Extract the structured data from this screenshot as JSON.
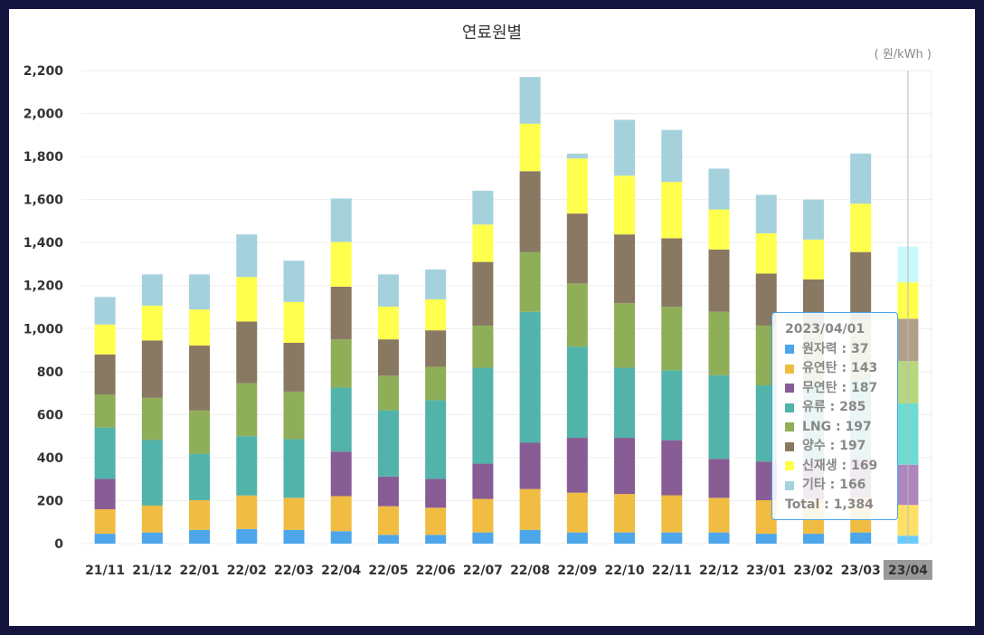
{
  "title": "연료원별",
  "unit": "( 원/kWh )",
  "chart_data": {
    "type": "bar",
    "stacked": true,
    "title": "연료원별",
    "ylabel": "( 원/kWh )",
    "ylim": [
      0,
      2200
    ],
    "yticks": [
      "0",
      "200",
      "400",
      "600",
      "800",
      "1,000",
      "1,200",
      "1,400",
      "1,600",
      "1,800",
      "2,000",
      "2,200"
    ],
    "grid": true,
    "categories": [
      "21/11",
      "21/12",
      "22/01",
      "22/02",
      "22/03",
      "22/04",
      "22/05",
      "22/06",
      "22/07",
      "22/08",
      "22/09",
      "22/10",
      "22/11",
      "22/12",
      "23/01",
      "23/02",
      "23/03",
      "23/04"
    ],
    "highlighted_category": "23/04",
    "series": [
      {
        "name": "원자력",
        "color": "#4da6ea",
        "highlight_color": "#66ccff",
        "values": [
          46,
          52,
          64,
          68,
          64,
          58,
          41,
          41,
          52,
          64,
          52,
          52,
          52,
          52,
          46,
          46,
          52,
          37
        ]
      },
      {
        "name": "유연탄",
        "color": "#f0bd42",
        "highlight_color": "#ffe066",
        "values": [
          114,
          125,
          138,
          156,
          149,
          163,
          133,
          126,
          156,
          190,
          185,
          179,
          173,
          161,
          156,
          160,
          163,
          143
        ]
      },
      {
        "name": "무연탄",
        "color": "#885c94",
        "highlight_color": "#ad86be",
        "values": [
          141,
          0,
          0,
          0,
          0,
          207,
          138,
          134,
          164,
          215,
          255,
          261,
          256,
          181,
          180,
          180,
          180,
          187
        ]
      },
      {
        "name": "유류",
        "color": "#52b3aa",
        "highlight_color": "#6cdcd2",
        "values": [
          239,
          305,
          216,
          276,
          273,
          298,
          308,
          366,
          446,
          609,
          424,
          326,
          325,
          389,
          354,
          350,
          365,
          285
        ]
      },
      {
        "name": "LNG",
        "color": "#8fae58",
        "highlight_color": "#b6d67f",
        "values": [
          154,
          196,
          201,
          246,
          221,
          224,
          161,
          155,
          196,
          277,
          294,
          300,
          295,
          295,
          278,
          270,
          280,
          197
        ]
      },
      {
        "name": "양수",
        "color": "#897862",
        "highlight_color": "#b0a08a",
        "values": [
          186,
          267,
          302,
          287,
          227,
          245,
          169,
          170,
          296,
          377,
          325,
          320,
          319,
          290,
          242,
          223,
          316,
          197
        ]
      },
      {
        "name": "신재생",
        "color": "#ffff4d",
        "highlight_color": "#ffff4d",
        "values": [
          139,
          162,
          168,
          207,
          190,
          208,
          152,
          144,
          174,
          221,
          256,
          273,
          262,
          186,
          187,
          185,
          225,
          169
        ]
      },
      {
        "name": "기타",
        "color": "#a5d1dc",
        "highlight_color": "#c8f8fc",
        "values": [
          128,
          145,
          163,
          198,
          192,
          202,
          150,
          139,
          157,
          217,
          23,
          260,
          242,
          190,
          179,
          186,
          233,
          166
        ]
      }
    ],
    "tooltip": {
      "title": "2023/04/01",
      "rows": [
        {
          "label": "원자력 : 37",
          "color": "#4da6ea"
        },
        {
          "label": "유연탄 : 143",
          "color": "#f0bd42"
        },
        {
          "label": "무연탄 : 187",
          "color": "#885c94"
        },
        {
          "label": "유류 : 285",
          "color": "#52b3aa"
        },
        {
          "label": "LNG : 197",
          "color": "#8fae58"
        },
        {
          "label": "양수 : 197",
          "color": "#897862"
        },
        {
          "label": "신재생 : 169",
          "color": "#ffff4d"
        },
        {
          "label": "기타 : 166",
          "color": "#a5d1dc"
        }
      ],
      "total": "Total : 1,384"
    }
  }
}
